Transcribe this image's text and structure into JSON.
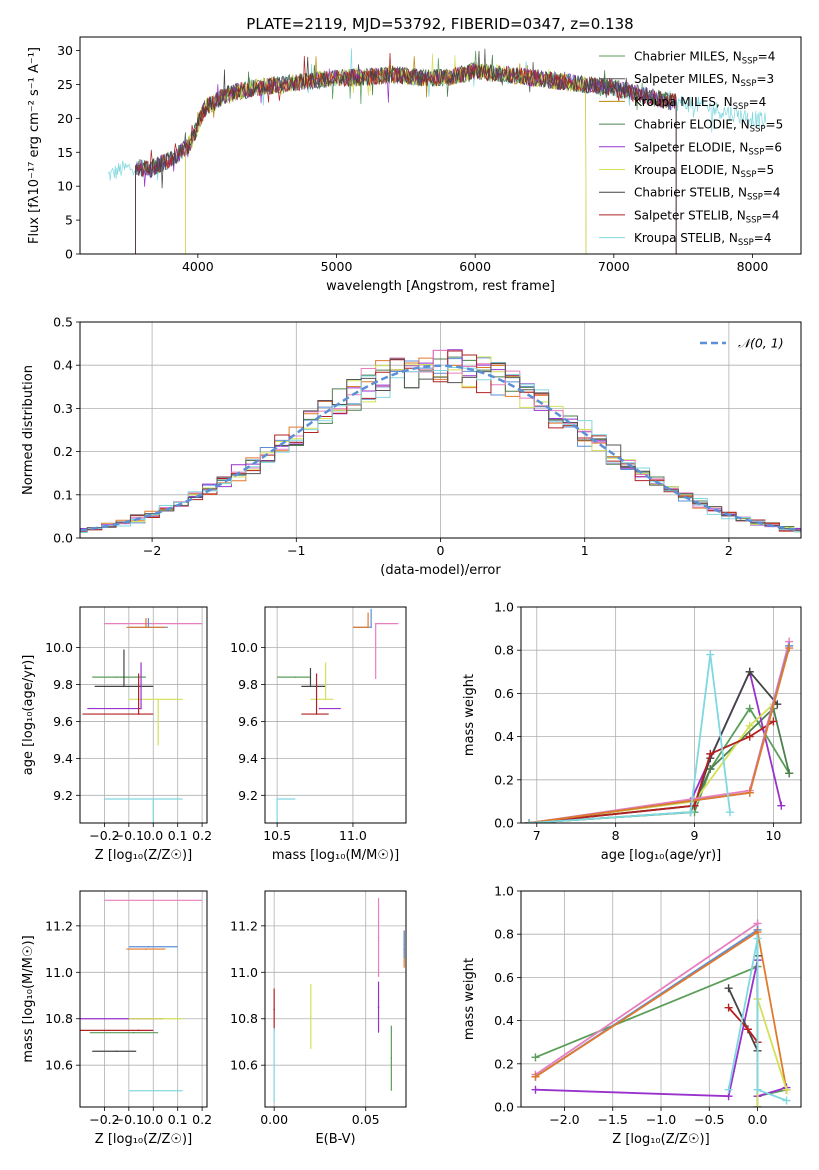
{
  "figure": {
    "title": "PLATE=2119, MJD=53792, FIBERID=0347, z=0.138",
    "models": [
      {
        "name": "Chabrier MILES",
        "nssp": "4",
        "color": "#5a9e5a"
      },
      {
        "name": "Salpeter MILES",
        "nssp": "3",
        "color": "#555555"
      },
      {
        "name": "Kroupa MILES",
        "nssp": "4",
        "color": "#b8860b"
      },
      {
        "name": "Chabrier ELODIE",
        "nssp": "5",
        "color": "#4f7f4f"
      },
      {
        "name": "Salpeter ELODIE",
        "nssp": "6",
        "color": "#9932cc"
      },
      {
        "name": "Kroupa ELODIE",
        "nssp": "5",
        "color": "#d4e157"
      },
      {
        "name": "Chabrier STELIB",
        "nssp": "4",
        "color": "#444444"
      },
      {
        "name": "Salpeter STELIB",
        "nssp": "4",
        "color": "#b22222"
      },
      {
        "name": "Kroupa STELIB",
        "nssp": "4",
        "color": "#80d8e0"
      }
    ]
  },
  "chart_data": [
    {
      "id": "spectrum",
      "type": "line",
      "title": "PLATE=2119, MJD=53792, FIBERID=0347, z=0.138",
      "xlabel": "wavelength [Angstrom, rest frame]",
      "ylabel": "Flux [fλ10⁻¹⁷ erg cm⁻² s⁻¹ A⁻¹]",
      "xlim": [
        3150,
        8350
      ],
      "ylim": [
        0,
        32
      ],
      "xticks": [
        4000,
        5000,
        6000,
        7000,
        8000
      ],
      "yticks": [
        0,
        5,
        10,
        15,
        20,
        25,
        30
      ],
      "grid": false,
      "legend": "top-right",
      "spectrum_shape": {
        "x": [
          3350,
          3450,
          3550,
          3650,
          3750,
          3850,
          3950,
          4050,
          4200,
          4400,
          4600,
          4800,
          5000,
          5200,
          5400,
          5600,
          5800,
          6000,
          6200,
          6400,
          6600,
          6800,
          7000,
          7200,
          7400,
          7600,
          7800,
          8000,
          8100
        ],
        "y": [
          11.5,
          12.5,
          12.8,
          12.5,
          13.5,
          14.5,
          16.5,
          21.5,
          23.5,
          24.5,
          25.0,
          25.5,
          26.0,
          26.0,
          26.5,
          26.0,
          26.0,
          27.0,
          26.5,
          26.0,
          25.5,
          25.0,
          24.5,
          23.5,
          22.5,
          22.0,
          21.0,
          20.0,
          19.5
        ]
      },
      "model_ranges": [
        [
          3550,
          7450
        ],
        [
          3550,
          7450
        ],
        [
          3910,
          6800
        ],
        [
          3550,
          7450
        ],
        [
          3550,
          7450
        ],
        [
          3910,
          6800
        ],
        [
          3550,
          7450
        ],
        [
          3550,
          7450
        ],
        [
          3350,
          8100
        ]
      ]
    },
    {
      "id": "residual-histogram",
      "type": "line",
      "xlabel": "(data-model)/error",
      "ylabel": "Normed distribution",
      "xlim": [
        -2.5,
        2.5
      ],
      "ylim": [
        0,
        0.5
      ],
      "xticks": [
        -2,
        -1,
        0,
        1,
        2
      ],
      "yticks": [
        0.0,
        0.1,
        0.2,
        0.3,
        0.4,
        0.5
      ],
      "grid": true,
      "legend": "top-right",
      "legend_label": "𝒩(0, 1)",
      "reference_curve": {
        "name": "𝒩(0, 1)",
        "mean": 0,
        "sigma": 1,
        "color": "#5b8fd6"
      },
      "bin_width": 0.1,
      "hist_colors": [
        "#5b8fd6",
        "#e07a2c",
        "#4f7f4f",
        "#9932cc",
        "#d4e157",
        "#e77fbf",
        "#b22222",
        "#80d8e0",
        "#555555"
      ]
    },
    {
      "id": "age-vs-metallicity",
      "type": "scatter",
      "xlabel": "Z [log₁₀(Z/Z☉)]",
      "ylabel": "age  [log₁₀(age/yr)]",
      "xlim": [
        -0.3,
        0.22
      ],
      "ylim": [
        9.05,
        10.22
      ],
      "xticks": [
        -0.2,
        -0.1,
        0.0,
        0.1,
        0.2
      ],
      "yticks": [
        9.2,
        9.4,
        9.6,
        9.8,
        10.0
      ],
      "grid": true,
      "points": [
        {
          "x": 0.0,
          "y": 10.13,
          "xerr": [
            0.2,
            0.2
          ],
          "yerr": [
            0.0,
            0.0
          ],
          "color": "#e77fbf"
        },
        {
          "x": -0.02,
          "y": 10.11,
          "xerr": [
            0.08,
            0.08
          ],
          "yerr": [
            0.05,
            0.0
          ],
          "color": "#5b8fd6"
        },
        {
          "x": -0.03,
          "y": 10.11,
          "xerr": [
            0.08,
            0.08
          ],
          "yerr": [
            0.05,
            0.0
          ],
          "color": "#e07a2c"
        },
        {
          "x": -0.15,
          "y": 9.84,
          "xerr": [
            0.1,
            0.12
          ],
          "yerr": [
            0.0,
            0.0
          ],
          "color": "#5a9e5a"
        },
        {
          "x": -0.12,
          "y": 9.79,
          "xerr": [
            0.12,
            0.12
          ],
          "yerr": [
            0.2,
            0.0
          ],
          "color": "#444444"
        },
        {
          "x": 0.02,
          "y": 9.72,
          "xerr": [
            0.12,
            0.1
          ],
          "yerr": [
            0.0,
            0.25
          ],
          "color": "#d4e157"
        },
        {
          "x": -0.05,
          "y": 9.67,
          "xerr": [
            0.22,
            0.0
          ],
          "yerr": [
            0.25,
            0.0
          ],
          "color": "#9932cc"
        },
        {
          "x": -0.06,
          "y": 9.64,
          "xerr": [
            0.23,
            0.06
          ],
          "yerr": [
            0.22,
            0.0
          ],
          "color": "#b22222"
        },
        {
          "x": 0.0,
          "y": 9.18,
          "xerr": [
            0.2,
            0.12
          ],
          "yerr": [
            0.0,
            0.72
          ],
          "color": "#80d8e0"
        }
      ]
    },
    {
      "id": "age-vs-mass",
      "type": "scatter",
      "xlabel": "mass [log₁₀(M/M☉)]",
      "ylabel": "",
      "xlim": [
        10.42,
        11.35
      ],
      "ylim": [
        9.05,
        10.22
      ],
      "xticks": [
        10.5,
        11.0
      ],
      "yticks": [
        9.2,
        9.4,
        9.6,
        9.8,
        10.0
      ],
      "grid": true,
      "points": [
        {
          "x": 11.15,
          "y": 10.13,
          "xerr": [
            0.0,
            0.15
          ],
          "yerr": [
            0.0,
            0.3
          ],
          "color": "#e77fbf"
        },
        {
          "x": 11.12,
          "y": 10.11,
          "xerr": [
            0.12,
            0.0
          ],
          "yerr": [
            0.1,
            0.0
          ],
          "color": "#5b8fd6"
        },
        {
          "x": 11.1,
          "y": 10.11,
          "xerr": [
            0.1,
            0.0
          ],
          "yerr": [
            0.08,
            0.0
          ],
          "color": "#e07a2c"
        },
        {
          "x": 10.62,
          "y": 9.84,
          "xerr": [
            0.12,
            0.1
          ],
          "yerr": [
            0.0,
            0.0
          ],
          "color": "#5a9e5a"
        },
        {
          "x": 10.72,
          "y": 9.79,
          "xerr": [
            0.06,
            0.1
          ],
          "yerr": [
            0.1,
            0.0
          ],
          "color": "#444444"
        },
        {
          "x": 10.82,
          "y": 9.72,
          "xerr": [
            0.1,
            0.05
          ],
          "yerr": [
            0.2,
            0.0
          ],
          "color": "#d4e157"
        },
        {
          "x": 10.78,
          "y": 9.67,
          "xerr": [
            0.0,
            0.14
          ],
          "yerr": [
            0.0,
            0.0
          ],
          "color": "#9932cc"
        },
        {
          "x": 10.76,
          "y": 9.64,
          "xerr": [
            0.1,
            0.08
          ],
          "yerr": [
            0.22,
            0.0
          ],
          "color": "#b22222"
        },
        {
          "x": 10.5,
          "y": 9.18,
          "xerr": [
            0.0,
            0.12
          ],
          "yerr": [
            0.0,
            0.66
          ],
          "color": "#80d8e0"
        }
      ]
    },
    {
      "id": "mass-weight-vs-age",
      "type": "line",
      "xlabel": "age  [log₁₀(age/yr)]",
      "ylabel": "mass weight",
      "xlim": [
        6.8,
        10.35
      ],
      "ylim": [
        0,
        1.0
      ],
      "xticks": [
        7,
        8,
        9,
        10
      ],
      "yticks": [
        0.0,
        0.2,
        0.4,
        0.6,
        0.8,
        1.0
      ],
      "grid": true,
      "series": [
        {
          "color": "#5a9e5a",
          "x": [
            6.9,
            9.0,
            9.2,
            9.7,
            10.2
          ],
          "y": [
            0.0,
            0.05,
            0.25,
            0.53,
            0.23
          ]
        },
        {
          "color": "#4f7f4f",
          "x": [
            6.9,
            8.95,
            9.2,
            10.0,
            10.2
          ],
          "y": [
            0.0,
            0.05,
            0.25,
            0.53,
            0.23
          ]
        },
        {
          "color": "#9932cc",
          "x": [
            6.9,
            8.95,
            9.7,
            10.1
          ],
          "y": [
            0.0,
            0.1,
            0.7,
            0.08
          ]
        },
        {
          "color": "#d4e157",
          "x": [
            6.9,
            9.0,
            9.7,
            10.0
          ],
          "y": [
            0.0,
            0.1,
            0.45,
            0.55
          ]
        },
        {
          "color": "#444444",
          "x": [
            6.9,
            9.0,
            9.2,
            9.7,
            10.05
          ],
          "y": [
            0.0,
            0.08,
            0.3,
            0.7,
            0.55
          ]
        },
        {
          "color": "#b22222",
          "x": [
            6.9,
            9.0,
            9.2,
            9.7,
            10.0
          ],
          "y": [
            0.0,
            0.08,
            0.32,
            0.4,
            0.47
          ]
        },
        {
          "color": "#e77fbf",
          "x": [
            6.9,
            9.7,
            10.2
          ],
          "y": [
            0.0,
            0.15,
            0.84
          ]
        },
        {
          "color": "#5b8fd6",
          "x": [
            6.9,
            9.7,
            10.2
          ],
          "y": [
            0.0,
            0.14,
            0.82
          ]
        },
        {
          "color": "#e07a2c",
          "x": [
            6.9,
            9.7,
            10.2
          ],
          "y": [
            0.0,
            0.14,
            0.81
          ]
        },
        {
          "color": "#80d8e0",
          "x": [
            6.9,
            8.95,
            9.2,
            9.45
          ],
          "y": [
            0.0,
            0.05,
            0.78,
            0.05
          ]
        }
      ]
    },
    {
      "id": "mass-vs-metallicity",
      "type": "scatter",
      "xlabel": "Z [log₁₀(Z/Z☉)]",
      "ylabel": "mass [log₁₀(M/M☉)]",
      "xlim": [
        -0.3,
        0.22
      ],
      "ylim": [
        10.42,
        11.35
      ],
      "xticks": [
        -0.2,
        -0.1,
        0.0,
        0.1,
        0.2
      ],
      "yticks": [
        10.6,
        10.8,
        11.0,
        11.2
      ],
      "grid": true,
      "points": [
        {
          "x": 0.0,
          "y": 11.31,
          "xerr": [
            0.2,
            0.2
          ],
          "yerr": [
            0.0,
            0.0
          ],
          "color": "#e77fbf"
        },
        {
          "x": -0.02,
          "y": 11.11,
          "xerr": [
            0.08,
            0.12
          ],
          "yerr": [
            0.0,
            0.0
          ],
          "color": "#5b8fd6"
        },
        {
          "x": -0.03,
          "y": 11.1,
          "xerr": [
            0.08,
            0.08
          ],
          "yerr": [
            0.0,
            0.0
          ],
          "color": "#e07a2c"
        },
        {
          "x": -0.08,
          "y": 10.8,
          "xerr": [
            0.22,
            0.12
          ],
          "yerr": [
            0.0,
            0.0
          ],
          "color": "#9932cc"
        },
        {
          "x": 0.02,
          "y": 10.8,
          "xerr": [
            0.12,
            0.1
          ],
          "yerr": [
            0.0,
            0.0
          ],
          "color": "#d4e157"
        },
        {
          "x": -0.06,
          "y": 10.75,
          "xerr": [
            0.25,
            0.06
          ],
          "yerr": [
            0.0,
            0.0
          ],
          "color": "#b22222"
        },
        {
          "x": -0.08,
          "y": 10.74,
          "xerr": [
            0.18,
            0.1
          ],
          "yerr": [
            0.0,
            0.0
          ],
          "color": "#5a9e5a"
        },
        {
          "x": -0.15,
          "y": 10.66,
          "xerr": [
            0.1,
            0.08
          ],
          "yerr": [
            0.0,
            0.0
          ],
          "color": "#444444"
        },
        {
          "x": 0.0,
          "y": 10.49,
          "xerr": [
            0.1,
            0.12
          ],
          "yerr": [
            0.0,
            0.0
          ],
          "color": "#80d8e0"
        }
      ]
    },
    {
      "id": "mass-vs-ebv",
      "type": "scatter",
      "xlabel": "E(B-V)",
      "ylabel": "",
      "xlim": [
        -0.005,
        0.072
      ],
      "ylim": [
        10.42,
        11.35
      ],
      "xticks": [
        0.0,
        0.05
      ],
      "yticks": [
        10.6,
        10.8,
        11.0,
        11.2
      ],
      "grid": true,
      "points": [
        {
          "x": 0.057,
          "y": 11.15,
          "yerr": [
            0.17,
            0.17
          ],
          "color": "#e77fbf"
        },
        {
          "x": 0.071,
          "y": 11.1,
          "yerr": [
            0.08,
            0.08
          ],
          "color": "#e07a2c"
        },
        {
          "x": 0.071,
          "y": 11.12,
          "yerr": [
            0.06,
            0.06
          ],
          "color": "#5b8fd6"
        },
        {
          "x": 0.0,
          "y": 10.84,
          "yerr": [
            0.09,
            0.09
          ],
          "color": "#b22222"
        },
        {
          "x": 0.02,
          "y": 10.81,
          "yerr": [
            0.14,
            0.14
          ],
          "color": "#d4e157"
        },
        {
          "x": 0.057,
          "y": 10.85,
          "yerr": [
            0.11,
            0.11
          ],
          "color": "#9932cc"
        },
        {
          "x": 0.064,
          "y": 10.63,
          "yerr": [
            0.14,
            0.14
          ],
          "color": "#5a9e5a"
        },
        {
          "x": 0.0,
          "y": 10.6,
          "yerr": [
            0.16,
            0.16
          ],
          "color": "#80d8e0"
        }
      ]
    },
    {
      "id": "mass-weight-vs-metallicity",
      "type": "line",
      "xlabel": "Z [log₁₀(Z/Z☉)]",
      "ylabel": "mass weight",
      "xlim": [
        -2.45,
        0.45
      ],
      "ylim": [
        0,
        1.0
      ],
      "xticks": [
        -2.0,
        -1.5,
        -1.0,
        -0.5,
        0.0
      ],
      "yticks": [
        0.0,
        0.2,
        0.4,
        0.6,
        0.8,
        1.0
      ],
      "grid": true,
      "series": [
        {
          "color": "#5a9e5a",
          "x": [
            -2.3,
            0.0,
            0.0,
            0.3
          ],
          "y": [
            0.23,
            0.65,
            0.05,
            0.08
          ]
        },
        {
          "color": "#e77fbf",
          "x": [
            -2.3,
            0.0,
            0.0
          ],
          "y": [
            0.15,
            0.85,
            0.0
          ]
        },
        {
          "color": "#5b8fd6",
          "x": [
            -2.3,
            0.0,
            0.0
          ],
          "y": [
            0.14,
            0.82,
            0.0
          ]
        },
        {
          "color": "#e07a2c",
          "x": [
            -2.3,
            0.0,
            0.3
          ],
          "y": [
            0.14,
            0.81,
            0.08
          ]
        },
        {
          "color": "#9932cc",
          "x": [
            -2.3,
            -0.3,
            0.0,
            0.0,
            0.3
          ],
          "y": [
            0.08,
            0.05,
            0.68,
            0.05,
            0.09
          ]
        },
        {
          "color": "#444444",
          "x": [
            -0.3,
            0.0,
            0.0
          ],
          "y": [
            0.55,
            0.26,
            0.7
          ]
        },
        {
          "color": "#b22222",
          "x": [
            -0.3,
            -0.1,
            0.0
          ],
          "y": [
            0.46,
            0.36,
            0.3
          ]
        },
        {
          "color": "#d4e157",
          "x": [
            0.0,
            0.0,
            0.3
          ],
          "y": [
            0.0,
            0.5,
            0.08
          ]
        },
        {
          "color": "#80d8e0",
          "x": [
            -0.3,
            0.0,
            0.0,
            0.3
          ],
          "y": [
            0.08,
            0.78,
            0.08,
            0.03
          ]
        }
      ]
    }
  ]
}
